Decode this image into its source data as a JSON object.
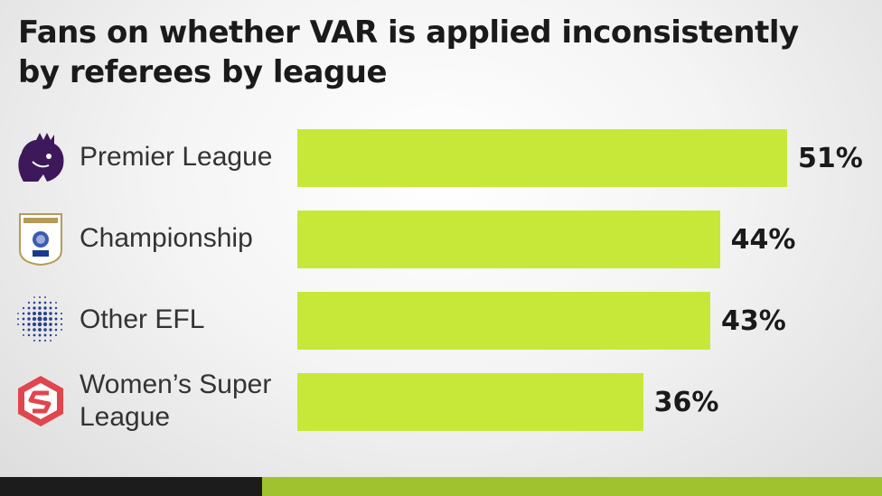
{
  "chart_data": {
    "type": "bar",
    "orientation": "horizontal",
    "title": "Fans on whether VAR is applied inconsistently by referees by league",
    "categories": [
      "Premier League",
      "Championship",
      "Other EFL",
      "Women’s Super League"
    ],
    "values": [
      51,
      44,
      43,
      36
    ],
    "value_labels": [
      "51%",
      "44%",
      "43%",
      "36%"
    ],
    "unit": "%",
    "xlim": [
      0,
      100
    ],
    "grid": false,
    "bar_color": "#c7e838",
    "icons": [
      "premier-league-lion-icon",
      "efl-championship-badge-icon",
      "efl-dots-icon",
      "wsl-hexagon-icon"
    ]
  }
}
